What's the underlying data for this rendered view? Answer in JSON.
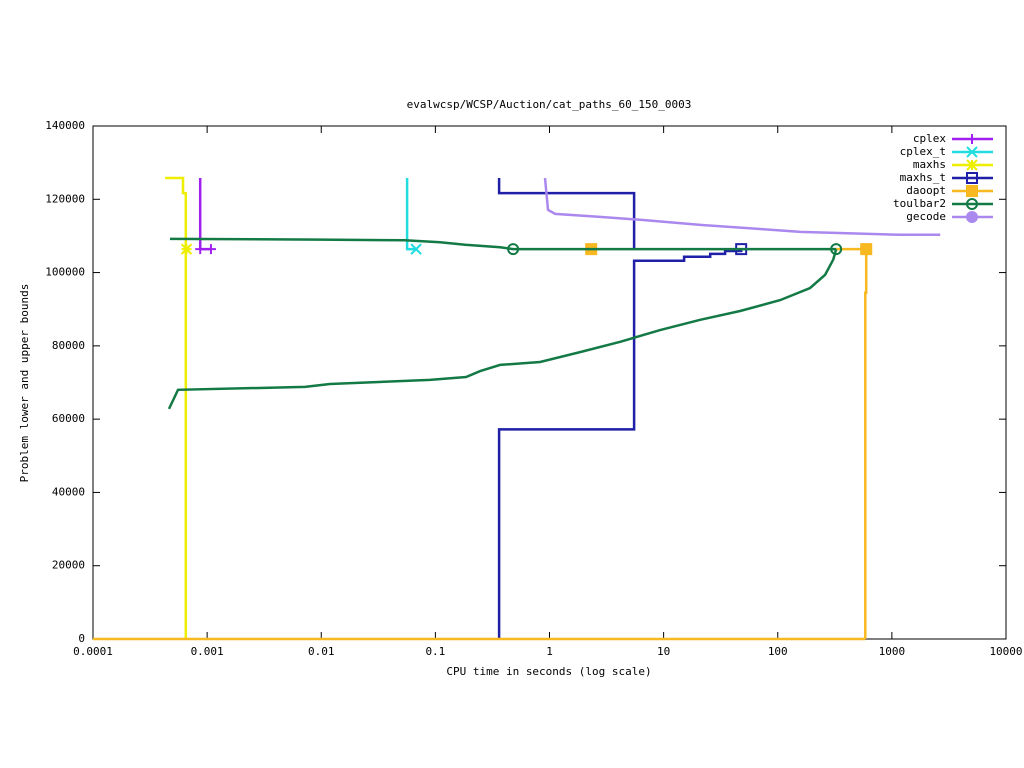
{
  "chart_data": {
    "type": "line",
    "title": "evalwcsp/WCSP/Auction/cat_paths_60_150_0003",
    "x_label": "CPU time in seconds (log scale)",
    "y_label": "Problem lower and upper bounds",
    "xlog": true,
    "xlim": [
      0.0001,
      10000
    ],
    "xticks": [
      0.0001,
      0.001,
      0.01,
      0.1,
      1,
      10,
      100,
      1000,
      10000
    ],
    "ylim": [
      0,
      140000
    ],
    "yticks": [
      0,
      20000,
      40000,
      60000,
      80000,
      100000,
      120000,
      140000
    ],
    "legend": "top-right",
    "series": [
      {
        "name": "cplex",
        "color": "#a020f0",
        "marker": "plus",
        "x": [
          0.00087,
          0.00087,
          0.00108
        ],
        "values": [
          125800,
          106400,
          106400
        ],
        "markers": {
          "x": [
            0.00087,
            0.00108
          ],
          "y": [
            106400,
            106400
          ]
        }
      },
      {
        "name": "cplex_t",
        "color": "#22dde0",
        "marker": "cross",
        "x": [
          0.0565,
          0.0565,
          0.0678
        ],
        "values": [
          125800,
          106400,
          106400
        ],
        "markers": {
          "x": [
            0.0678
          ],
          "y": [
            106400
          ]
        }
      },
      {
        "name": "maxhs",
        "color": "#eeee00",
        "marker": "star",
        "x": [
          0.000428,
          0.000615,
          0.000615,
          0.00065,
          0.00065
        ],
        "values": [
          125800,
          125800,
          121700,
          121700,
          0
        ],
        "markers": {
          "x": [
            0.00066
          ],
          "y": [
            106400
          ]
        }
      },
      {
        "name": "maxhs_t",
        "color": "#1f1fa8",
        "marker": "open-square",
        "x": [
          0.362,
          0.362,
          5.51,
          5.51,
          null,
          0.362,
          0.362,
          5.51,
          5.51,
          15.1,
          15.1,
          25.6,
          25.6,
          34.6,
          34.6,
          47.8,
          47.8
        ],
        "values": [
          125800,
          121700,
          121700,
          106400,
          null,
          0,
          57200,
          57200,
          103200,
          103200,
          104300,
          104300,
          105100,
          105100,
          105900,
          105900,
          106400
        ],
        "markers": {
          "x": [
            47.8
          ],
          "y": [
            106400
          ]
        }
      },
      {
        "name": "daoopt",
        "color": "#f8b820",
        "marker": "filled-square",
        "x": [
          325,
          596,
          596,
          585,
          585,
          null,
          0.0001,
          585
        ],
        "values": [
          106400,
          106400,
          94500,
          94500,
          0,
          null,
          0,
          0
        ],
        "markers": {
          "x": [
            2.32,
            596
          ],
          "y": [
            106400,
            106400
          ]
        }
      },
      {
        "name": "toulbar2",
        "color": "#137a45",
        "marker": "open-circle",
        "x": [
          0.000473,
          0.00977,
          0.0542,
          0.11,
          0.182,
          0.369,
          0.48,
          325,
          null,
          0.000463,
          0.000556,
          0.00721,
          0.0119,
          0.0897,
          0.186,
          0.247,
          0.369,
          0.828,
          1.85,
          4.16,
          9.31,
          20.9,
          46.8,
          105,
          192,
          260,
          306,
          325
        ],
        "values": [
          109200,
          109000,
          108800,
          108300,
          107600,
          106900,
          106400,
          106400,
          null,
          62800,
          68000,
          68800,
          69600,
          70700,
          71500,
          73100,
          74800,
          75600,
          78300,
          81100,
          84300,
          87100,
          89500,
          92500,
          95800,
          99400,
          103500,
          106400
        ],
        "markers": {
          "x": [
            0.48,
            325
          ],
          "y": [
            106400,
            106400
          ]
        }
      },
      {
        "name": "gecode",
        "color": "#aa88ee",
        "marker": "filled-circle",
        "x": [
          0.914,
          0.97,
          1.12,
          2.77,
          6.22,
          20.9,
          70.1,
          157,
          1183,
          2650
        ],
        "values": [
          125800,
          117100,
          116000,
          115200,
          114400,
          113000,
          111900,
          111100,
          110300,
          110300
        ]
      }
    ]
  }
}
